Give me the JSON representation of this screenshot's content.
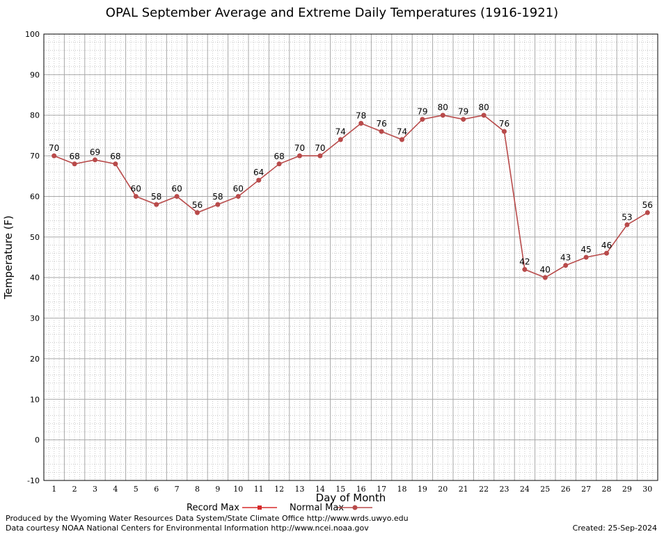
{
  "chart_data": {
    "type": "line",
    "title": "OPAL September Average and Extreme Daily Temperatures (1916-1921)",
    "xlabel": "Day of Month",
    "ylabel": "Temperature (F)",
    "categories": [
      1,
      2,
      3,
      4,
      5,
      6,
      7,
      8,
      9,
      10,
      11,
      12,
      13,
      14,
      15,
      16,
      17,
      18,
      19,
      20,
      21,
      22,
      23,
      24,
      25,
      26,
      27,
      28,
      29,
      30
    ],
    "ylim": [
      -10,
      100
    ],
    "yticks": [
      -10,
      0,
      10,
      20,
      30,
      40,
      50,
      60,
      70,
      80,
      90,
      100
    ],
    "grid": true,
    "legend_position": "bottom-center",
    "legend": [
      {
        "name": "Record Max",
        "color": "#d62a2a"
      },
      {
        "name": "Normal Max",
        "color": "#b84a4a"
      }
    ],
    "series": [
      {
        "name": "Normal Max",
        "color": "#b84a4a",
        "values": [
          70,
          68,
          69,
          68,
          60,
          58,
          60,
          56,
          58,
          60,
          64,
          68,
          70,
          70,
          74,
          78,
          76,
          74,
          79,
          80,
          79,
          80,
          76,
          42,
          40,
          43,
          45,
          46,
          53,
          56
        ],
        "data_labels": true
      }
    ]
  },
  "footer": {
    "credit_line1": "Produced by the Wyoming Water Resources Data System/State Climate Office http://www.wrds.uwyo.edu",
    "credit_line2": "Data courtesy NOAA National Centers for Environmental Information http://www.ncei.noaa.gov",
    "created": "Created:  25-Sep-2024"
  }
}
